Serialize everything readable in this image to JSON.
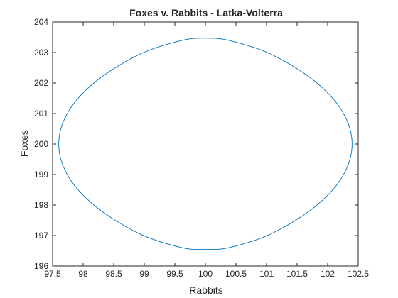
{
  "chart_data": {
    "type": "line",
    "title": "Foxes v. Rabbits - Latka-Volterra",
    "xlabel": "Rabbits",
    "ylabel": "Foxes",
    "xlim": [
      97.5,
      102.5
    ],
    "ylim": [
      196,
      204
    ],
    "xticks": [
      "97.5",
      "98",
      "98.5",
      "99",
      "99.5",
      "100",
      "100.5",
      "101",
      "101.5",
      "102",
      "102.5"
    ],
    "yticks": [
      "196",
      "197",
      "198",
      "199",
      "200",
      "201",
      "202",
      "203",
      "204"
    ],
    "grid": false,
    "legend": "none",
    "series": [
      {
        "color": "#0072bd",
        "closed": true,
        "x": [
          97.6,
          97.76,
          98.2,
          98.9,
          99.6,
          100.0,
          100.4,
          101.1,
          101.8,
          102.24,
          102.4,
          102.24,
          101.8,
          101.1,
          100.4,
          100.0,
          99.6,
          98.9,
          98.2,
          97.76,
          97.6
        ],
        "y": [
          200.0,
          201.07,
          202.04,
          202.92,
          203.39,
          203.47,
          203.39,
          202.92,
          202.04,
          201.07,
          200.0,
          198.93,
          197.96,
          197.08,
          196.61,
          196.55,
          196.61,
          197.08,
          197.96,
          198.93,
          200.0
        ]
      }
    ]
  }
}
